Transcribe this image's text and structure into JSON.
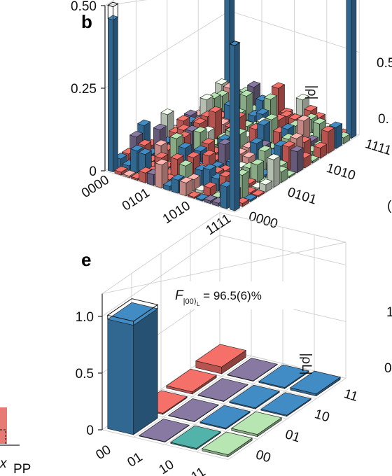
{
  "panel_b_label": "b",
  "panel_e_label": "e",
  "annotation_e": "F",
  "annotation_e_sub": "|00⟩",
  "annotation_e_subsub": "L",
  "annotation_e_value": " = 96.5(6)%",
  "edge_fragments": {
    "left_x": "x",
    "left_pp": "PP",
    "right_1": "0.5",
    "right_2": "0.",
    "right_3": "(",
    "right_4": "1",
    "right_5": "0"
  },
  "colors": {
    "blue": "#3b7fb2",
    "red": "#e06660",
    "green": "#a6d1a3",
    "purple": "#7b6e93",
    "teal": "#4aa39a",
    "ideal_outline": "#111111"
  },
  "chart_data": [
    {
      "type": "bar3d",
      "panel": "b",
      "zlabel": "|ρ|",
      "zticks": [
        0,
        0.25,
        0.5
      ],
      "zlim": [
        0,
        0.5
      ],
      "x_ticks": [
        "0000",
        "0101",
        "1010",
        "1111"
      ],
      "y_ticks": [
        "0000",
        "0101",
        "1010",
        "1111"
      ],
      "grid_size": 16,
      "corner_bars": [
        {
          "i": 0,
          "j": 0,
          "value": 0.46,
          "ideal": 0.5
        },
        {
          "i": 15,
          "j": 0,
          "value": 0.5,
          "ideal": 0.5
        },
        {
          "i": 0,
          "j": 15,
          "value": 0.46,
          "ideal": 0.5
        },
        {
          "i": 15,
          "j": 15,
          "value": 0.5,
          "ideal": 0.5
        }
      ],
      "background_max": 0.08
    },
    {
      "type": "bar3d",
      "panel": "e",
      "zlabel": "|ρL|",
      "zticks": [
        0,
        0.5,
        1.0
      ],
      "zlim": [
        0,
        1.0
      ],
      "x_ticks": [
        "00",
        "01",
        "10",
        "11"
      ],
      "y_ticks": [
        "00",
        "01",
        "10",
        "11"
      ],
      "bars": [
        {
          "i": 0,
          "j": 0,
          "value": 0.965,
          "ideal": 1.0,
          "color": "blue"
        },
        {
          "i": 1,
          "j": 0,
          "value": 0.0,
          "color": "purple"
        },
        {
          "i": 2,
          "j": 0,
          "value": 0.01,
          "color": "teal"
        },
        {
          "i": 3,
          "j": 0,
          "value": 0.02,
          "color": "green"
        },
        {
          "i": 0,
          "j": 1,
          "value": 0.01,
          "color": "red"
        },
        {
          "i": 1,
          "j": 1,
          "value": 0.0,
          "color": "purple"
        },
        {
          "i": 2,
          "j": 1,
          "value": 0.01,
          "color": "blue"
        },
        {
          "i": 3,
          "j": 1,
          "value": 0.02,
          "color": "green"
        },
        {
          "i": 0,
          "j": 2,
          "value": 0.02,
          "color": "red"
        },
        {
          "i": 1,
          "j": 2,
          "value": 0.0,
          "color": "purple"
        },
        {
          "i": 2,
          "j": 2,
          "value": 0.01,
          "color": "blue"
        },
        {
          "i": 3,
          "j": 2,
          "value": 0.01,
          "color": "blue"
        },
        {
          "i": 0,
          "j": 3,
          "value": 0.06,
          "color": "red"
        },
        {
          "i": 1,
          "j": 3,
          "value": 0.0,
          "color": "purple"
        },
        {
          "i": 2,
          "j": 3,
          "value": 0.01,
          "color": "blue"
        },
        {
          "i": 3,
          "j": 3,
          "value": 0.02,
          "color": "blue"
        }
      ]
    }
  ]
}
